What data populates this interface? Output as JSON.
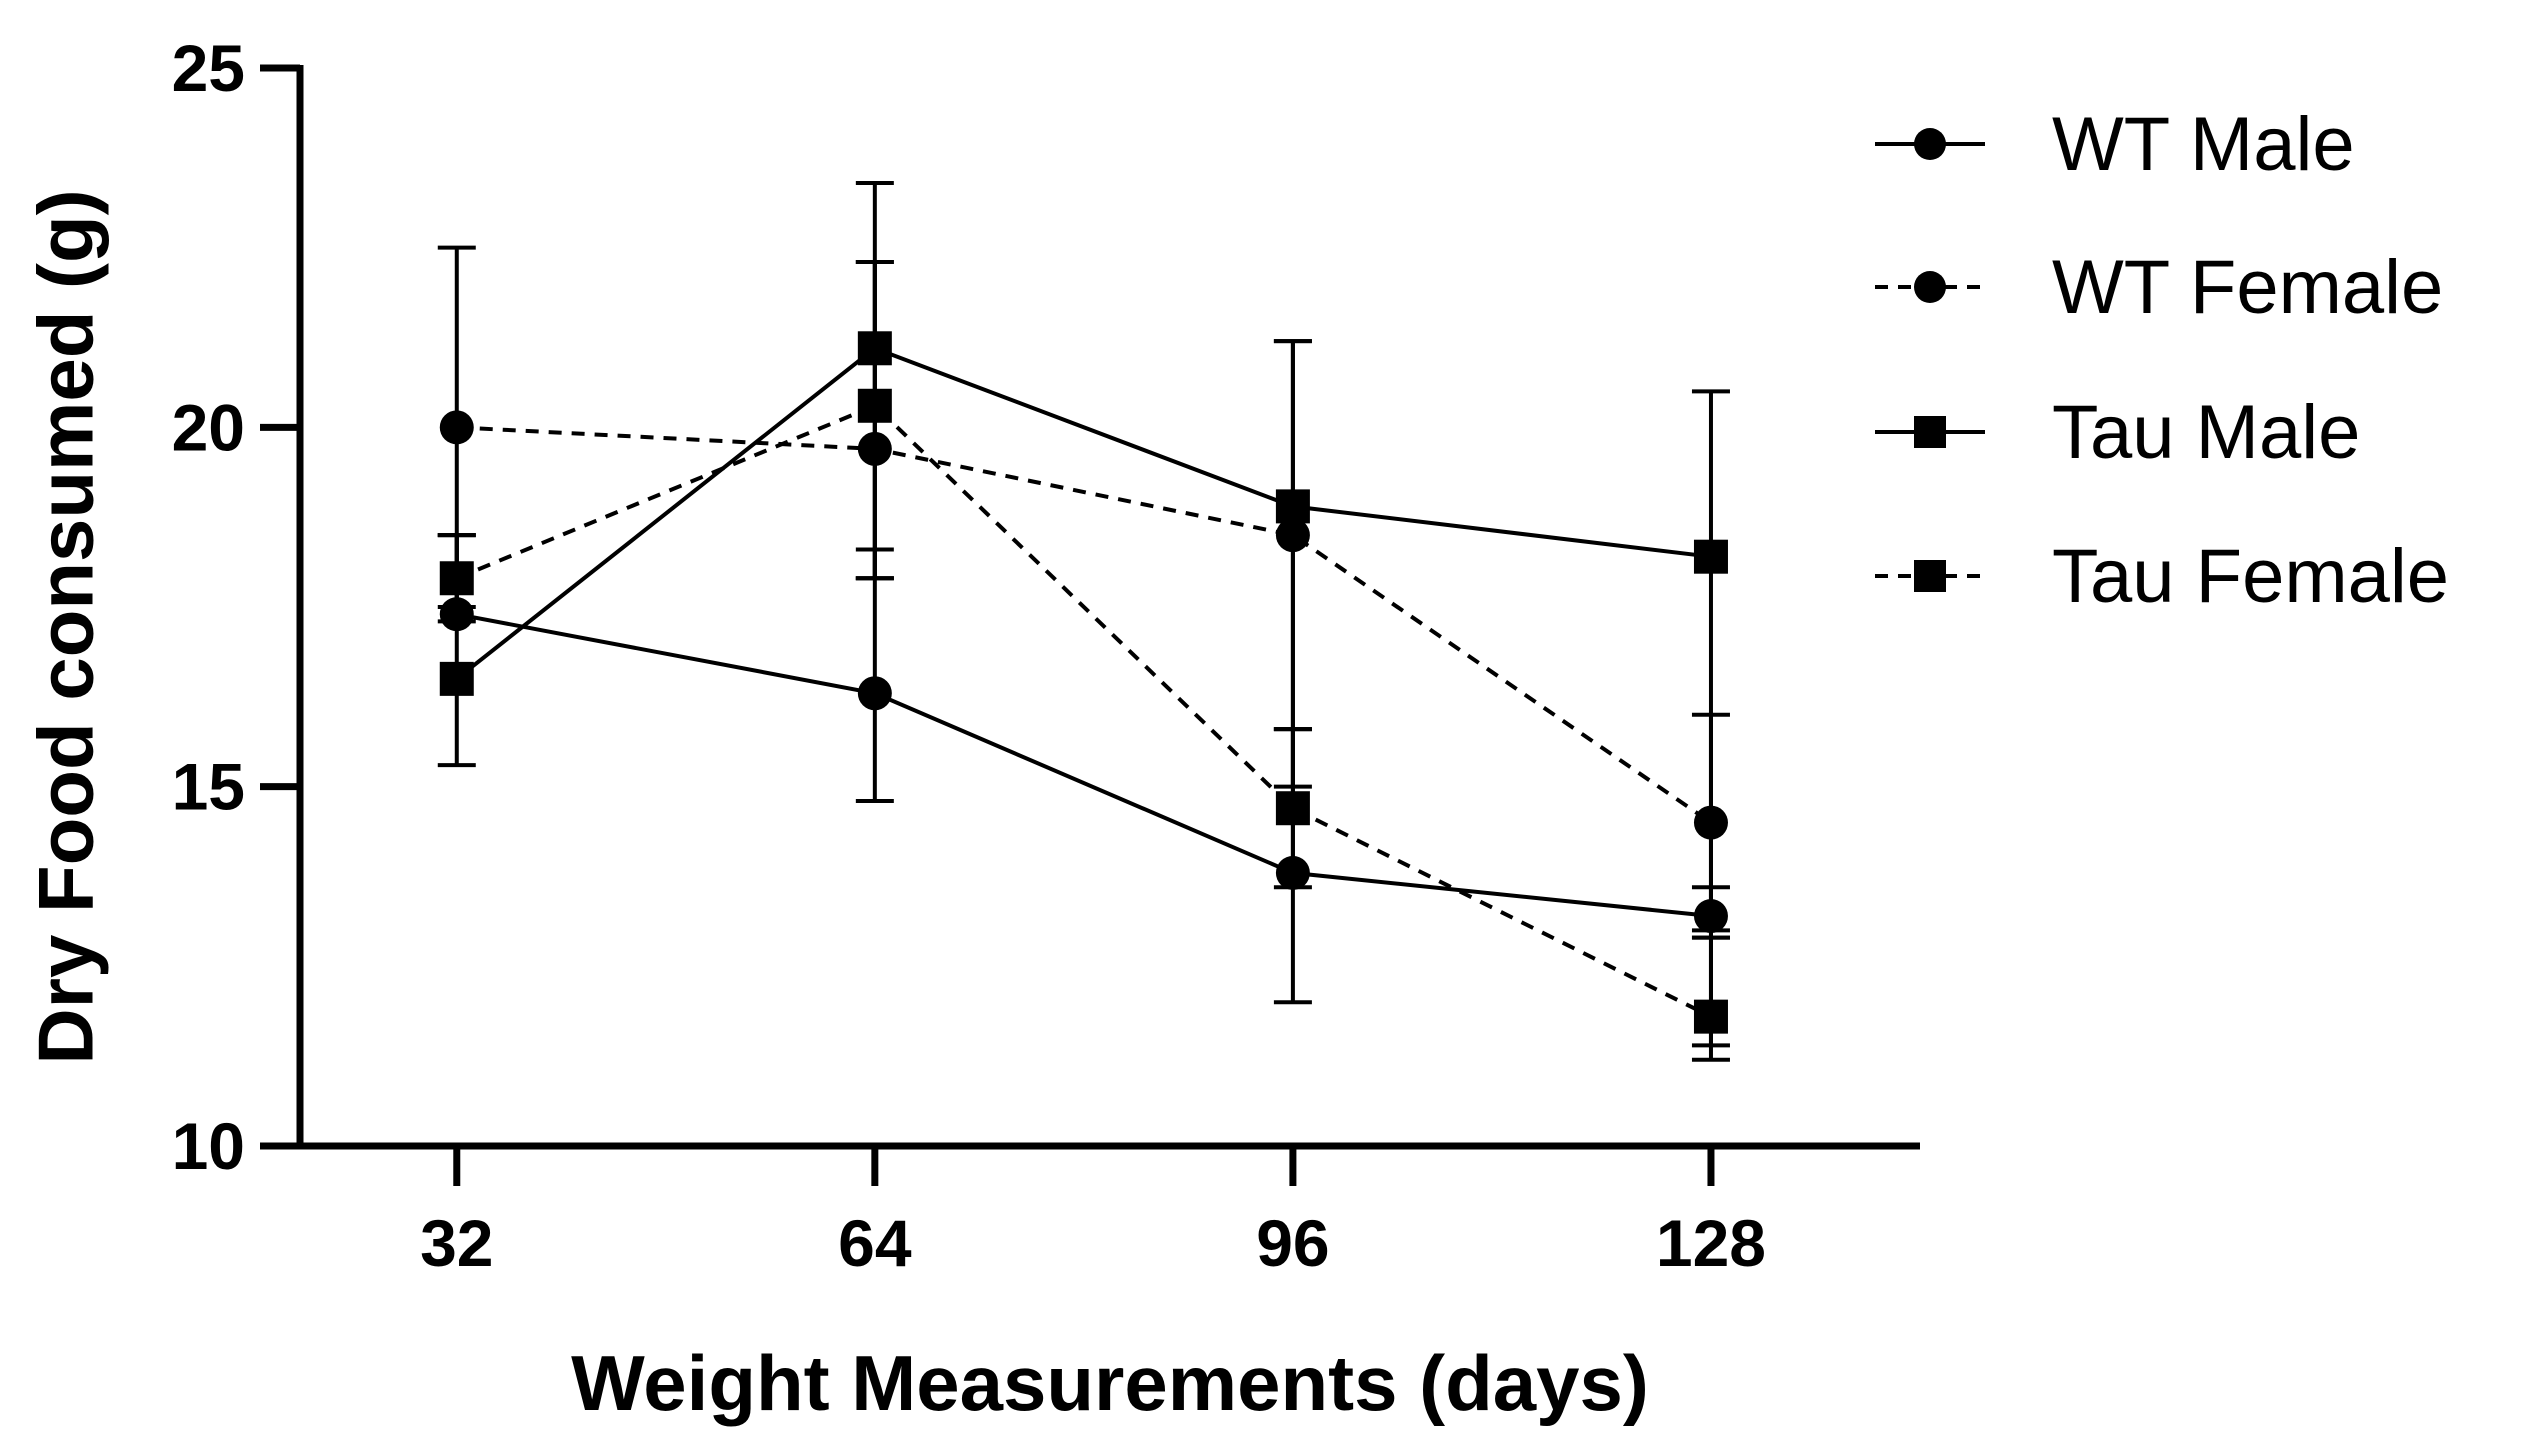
{
  "chart_data": {
    "type": "line",
    "title": "",
    "xlabel": "Weight Measurements (days)",
    "ylabel": "Dry Food consumed (g)",
    "x": [
      32,
      64,
      96,
      128
    ],
    "x_tick_labels": [
      "32",
      "64",
      "96",
      "128"
    ],
    "ylim": [
      10,
      25
    ],
    "y_ticks": [
      10,
      15,
      20,
      25
    ],
    "y_tick_labels": [
      "10",
      "15",
      "20",
      "25"
    ],
    "grid": false,
    "legend_position": "top-right",
    "series": [
      {
        "name": "WT Male",
        "marker": "circle",
        "line": "solid",
        "values": [
          17.4,
          16.3,
          13.8,
          13.2
        ],
        "error": [
          [
            0,
            1.1
          ],
          [
            1.5,
            2.0
          ],
          [
            1.8,
            2.0
          ],
          [
            0.3,
            0.4
          ]
        ]
      },
      {
        "name": "WT Female",
        "marker": "circle",
        "line": "dashed",
        "values": [
          20.0,
          19.7,
          18.5,
          14.5
        ],
        "error": [
          [
            2.5,
            2.5
          ],
          [
            1.8,
            2.6
          ],
          [
            3.5,
            2.7
          ],
          [
            3.1,
            1.5
          ]
        ]
      },
      {
        "name": "Tau Male",
        "marker": "square",
        "line": "solid",
        "values": [
          16.5,
          21.1,
          18.9,
          18.2
        ],
        "error": [
          [
            1.2,
            2.0
          ],
          [
            3.2,
            2.3
          ],
          [
            3.1,
            2.3
          ],
          [
            5.2,
            2.3
          ]
        ]
      },
      {
        "name": "Tau Female",
        "marker": "square",
        "line": "dashed",
        "values": [
          17.9,
          20.3,
          14.7,
          11.8
        ],
        "error": [
          [
            0.6,
            0.6
          ],
          [
            2.4,
            2.0
          ],
          [
            1.1,
            1.1
          ],
          [
            0.6,
            1.1
          ]
        ]
      }
    ]
  }
}
